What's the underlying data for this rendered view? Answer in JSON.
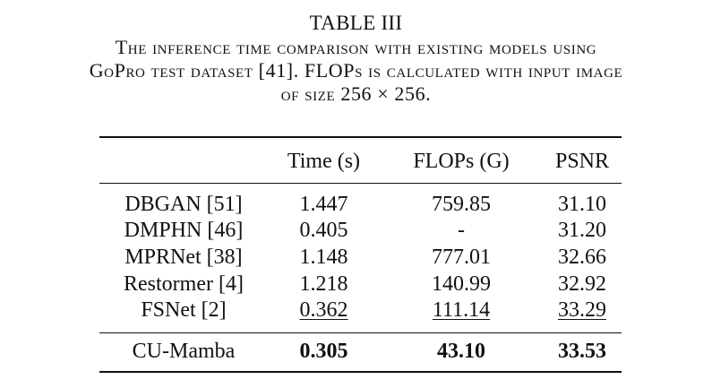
{
  "caption": {
    "label": "TABLE III",
    "lines": [
      "The inference time comparison with existing models using",
      "GoPro test dataset [41]. FLOPs is calculated with input image",
      "of size 256 × 256."
    ]
  },
  "table": {
    "headers": [
      "",
      "Time (s)",
      "FLOPs (G)",
      "PSNR"
    ],
    "rows": [
      {
        "model": "DBGAN [51]",
        "time": "1.447",
        "flops": "759.85",
        "psnr": "31.10"
      },
      {
        "model": "DMPHN [46]",
        "time": "0.405",
        "flops": "-",
        "psnr": "31.20"
      },
      {
        "model": "MPRNet [38]",
        "time": "1.148",
        "flops": "777.01",
        "psnr": "32.66"
      },
      {
        "model": "Restormer [4]",
        "time": "1.218",
        "flops": "140.99",
        "psnr": "32.92"
      },
      {
        "model": "FSNet [2]",
        "time": "0.362",
        "flops": "111.14",
        "psnr": "33.29"
      }
    ],
    "ours": {
      "model": "CU-Mamba",
      "time": "0.305",
      "flops": "43.10",
      "psnr": "33.53"
    }
  }
}
